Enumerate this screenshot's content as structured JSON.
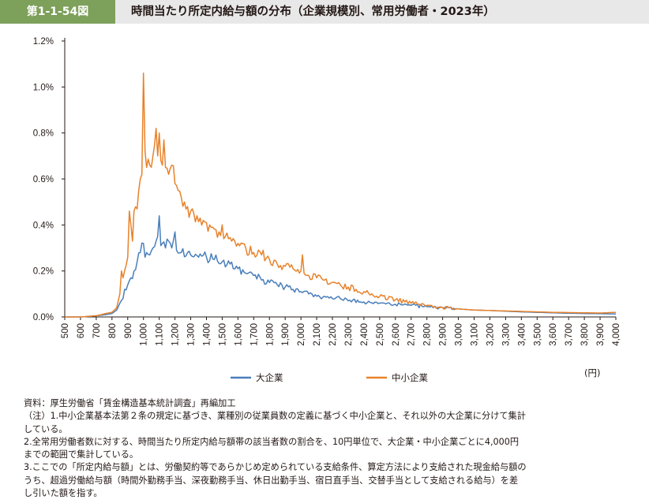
{
  "header": {
    "figure_label": "第1-1-54図",
    "title": "時間当たり所定内給与額の分布（企業規模別、常用労働者・2023年）"
  },
  "chart_data": {
    "type": "line",
    "title": "時間当たり所定内給与額の分布（企業規模別、常用労働者・2023年）",
    "xlabel": "",
    "ylabel": "",
    "x_unit_label": "(円)",
    "xlim": [
      500,
      4000
    ],
    "ylim": [
      0,
      1.2
    ],
    "y_ticks": [
      "0.0%",
      "0.2%",
      "0.4%",
      "0.6%",
      "0.8%",
      "1.0%",
      "1.2%"
    ],
    "x_ticks": [
      "500",
      "600",
      "700",
      "800",
      "900",
      "1,000",
      "1,100",
      "1,200",
      "1,300",
      "1,400",
      "1,500",
      "1,600",
      "1,700",
      "1,800",
      "1,900",
      "2,000",
      "2,100",
      "2,200",
      "2,300",
      "2,400",
      "2,500",
      "2,600",
      "2,700",
      "2,800",
      "2,900",
      "3,000",
      "3,100",
      "3,200",
      "3,300",
      "3,400",
      "3,500",
      "3,600",
      "3,700",
      "3,800",
      "3,900",
      "4,000"
    ],
    "grid": false,
    "legend_position": "bottom",
    "series": [
      {
        "name": "大企業",
        "color": "#4a7ebb",
        "points": [
          [
            500,
            0.0
          ],
          [
            600,
            0.0
          ],
          [
            700,
            0.005
          ],
          [
            760,
            0.01
          ],
          [
            800,
            0.015
          ],
          [
            830,
            0.03
          ],
          [
            850,
            0.06
          ],
          [
            870,
            0.08
          ],
          [
            880,
            0.12
          ],
          [
            900,
            0.14
          ],
          [
            920,
            0.17
          ],
          [
            940,
            0.2
          ],
          [
            960,
            0.24
          ],
          [
            980,
            0.28
          ],
          [
            1000,
            0.32
          ],
          [
            1010,
            0.26
          ],
          [
            1020,
            0.28
          ],
          [
            1040,
            0.27
          ],
          [
            1060,
            0.3
          ],
          [
            1080,
            0.33
          ],
          [
            1100,
            0.44
          ],
          [
            1110,
            0.31
          ],
          [
            1120,
            0.32
          ],
          [
            1140,
            0.3
          ],
          [
            1160,
            0.33
          ],
          [
            1180,
            0.3
          ],
          [
            1200,
            0.37
          ],
          [
            1210,
            0.29
          ],
          [
            1240,
            0.28
          ],
          [
            1280,
            0.28
          ],
          [
            1300,
            0.27
          ],
          [
            1350,
            0.26
          ],
          [
            1400,
            0.26
          ],
          [
            1450,
            0.25
          ],
          [
            1500,
            0.24
          ],
          [
            1550,
            0.23
          ],
          [
            1600,
            0.21
          ],
          [
            1650,
            0.19
          ],
          [
            1700,
            0.18
          ],
          [
            1750,
            0.16
          ],
          [
            1800,
            0.15
          ],
          [
            1850,
            0.14
          ],
          [
            1900,
            0.13
          ],
          [
            1950,
            0.12
          ],
          [
            2000,
            0.11
          ],
          [
            2050,
            0.1
          ],
          [
            2100,
            0.09
          ],
          [
            2150,
            0.09
          ],
          [
            2200,
            0.08
          ],
          [
            2250,
            0.08
          ],
          [
            2300,
            0.07
          ],
          [
            2400,
            0.065
          ],
          [
            2500,
            0.06
          ],
          [
            2600,
            0.055
          ],
          [
            2700,
            0.05
          ],
          [
            2800,
            0.045
          ],
          [
            2900,
            0.04
          ],
          [
            3000,
            0.035
          ],
          [
            3100,
            0.03
          ],
          [
            3200,
            0.028
          ],
          [
            3300,
            0.025
          ],
          [
            3400,
            0.022
          ],
          [
            3500,
            0.02
          ],
          [
            3600,
            0.018
          ],
          [
            3700,
            0.016
          ],
          [
            3800,
            0.015
          ],
          [
            3900,
            0.014
          ],
          [
            4000,
            0.013
          ]
        ]
      },
      {
        "name": "中小企業",
        "color": "#e8822a",
        "points": [
          [
            500,
            0.0
          ],
          [
            600,
            0.0
          ],
          [
            700,
            0.005
          ],
          [
            760,
            0.015
          ],
          [
            800,
            0.02
          ],
          [
            830,
            0.04
          ],
          [
            850,
            0.1
          ],
          [
            860,
            0.2
          ],
          [
            870,
            0.17
          ],
          [
            880,
            0.2
          ],
          [
            900,
            0.26
          ],
          [
            910,
            0.46
          ],
          [
            920,
            0.4
          ],
          [
            930,
            0.33
          ],
          [
            940,
            0.46
          ],
          [
            960,
            0.47
          ],
          [
            970,
            0.55
          ],
          [
            980,
            0.6
          ],
          [
            990,
            0.62
          ],
          [
            1000,
            1.06
          ],
          [
            1010,
            0.72
          ],
          [
            1020,
            0.65
          ],
          [
            1040,
            0.66
          ],
          [
            1060,
            0.7
          ],
          [
            1080,
            0.82
          ],
          [
            1090,
            0.7
          ],
          [
            1100,
            0.8
          ],
          [
            1110,
            0.68
          ],
          [
            1120,
            0.66
          ],
          [
            1130,
            0.77
          ],
          [
            1140,
            0.65
          ],
          [
            1160,
            0.62
          ],
          [
            1180,
            0.66
          ],
          [
            1200,
            0.58
          ],
          [
            1220,
            0.55
          ],
          [
            1240,
            0.52
          ],
          [
            1260,
            0.5
          ],
          [
            1280,
            0.48
          ],
          [
            1300,
            0.46
          ],
          [
            1320,
            0.45
          ],
          [
            1340,
            0.44
          ],
          [
            1360,
            0.43
          ],
          [
            1380,
            0.42
          ],
          [
            1400,
            0.41
          ],
          [
            1420,
            0.4
          ],
          [
            1440,
            0.39
          ],
          [
            1460,
            0.38
          ],
          [
            1480,
            0.37
          ],
          [
            1500,
            0.4
          ],
          [
            1510,
            0.34
          ],
          [
            1520,
            0.35
          ],
          [
            1540,
            0.34
          ],
          [
            1560,
            0.33
          ],
          [
            1580,
            0.33
          ],
          [
            1600,
            0.32
          ],
          [
            1650,
            0.3
          ],
          [
            1700,
            0.28
          ],
          [
            1750,
            0.27
          ],
          [
            1800,
            0.25
          ],
          [
            1850,
            0.23
          ],
          [
            1900,
            0.22
          ],
          [
            1950,
            0.21
          ],
          [
            2000,
            0.2
          ],
          [
            2010,
            0.27
          ],
          [
            2020,
            0.19
          ],
          [
            2050,
            0.18
          ],
          [
            2100,
            0.17
          ],
          [
            2150,
            0.16
          ],
          [
            2200,
            0.15
          ],
          [
            2250,
            0.14
          ],
          [
            2300,
            0.13
          ],
          [
            2350,
            0.12
          ],
          [
            2400,
            0.11
          ],
          [
            2450,
            0.1
          ],
          [
            2500,
            0.09
          ],
          [
            2600,
            0.075
          ],
          [
            2700,
            0.06
          ],
          [
            2800,
            0.05
          ],
          [
            2900,
            0.04
          ],
          [
            3000,
            0.035
          ],
          [
            3100,
            0.03
          ],
          [
            3200,
            0.028
          ],
          [
            3300,
            0.026
          ],
          [
            3400,
            0.024
          ],
          [
            3500,
            0.022
          ],
          [
            3600,
            0.02
          ],
          [
            3700,
            0.019
          ],
          [
            3800,
            0.018
          ],
          [
            3900,
            0.017
          ],
          [
            4000,
            0.02
          ]
        ]
      }
    ]
  },
  "notes": [
    "資料：厚生労働省「賃金構造基本統計調査」再編加工",
    "（注）1.中小企業基本法第２条の規定に基づき、業種別の従業員数の定義に基づく中小企業と、それ以外の大企業に分けて集計",
    "している。",
    "2.全常用労働者数に対する、時間当たり所定内給与額帯の該当者数の割合を、10円単位で、大企業・中小企業ごとに4,000円",
    "までの範囲で集計している。",
    "3.ここでの「所定内給与額」とは、労働契約等であらかじめ定められている支給条件、算定方法により支給された現金給与額の",
    "うち、超過労働給与額（時間外勤務手当、深夜勤務手当、休日出勤手当、宿日直手当、交替手当として支給される給与）を差",
    "し引いた額を指す。"
  ]
}
